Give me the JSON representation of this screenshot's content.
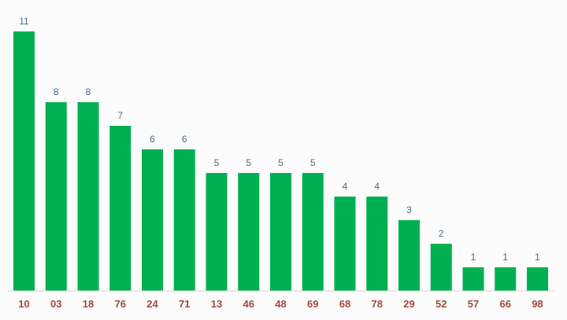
{
  "chart_data": {
    "type": "bar",
    "categories": [
      "10",
      "03",
      "18",
      "76",
      "24",
      "71",
      "13",
      "46",
      "48",
      "69",
      "68",
      "78",
      "29",
      "52",
      "57",
      "66",
      "98"
    ],
    "values": [
      11,
      8,
      8,
      7,
      6,
      6,
      5,
      5,
      5,
      5,
      4,
      4,
      3,
      2,
      1,
      1,
      1
    ],
    "ylim": [
      0,
      11
    ],
    "grid": false,
    "bar_color": "#00b050",
    "value_label_color": "#4a6a85",
    "category_label_color": "#a0483a"
  }
}
